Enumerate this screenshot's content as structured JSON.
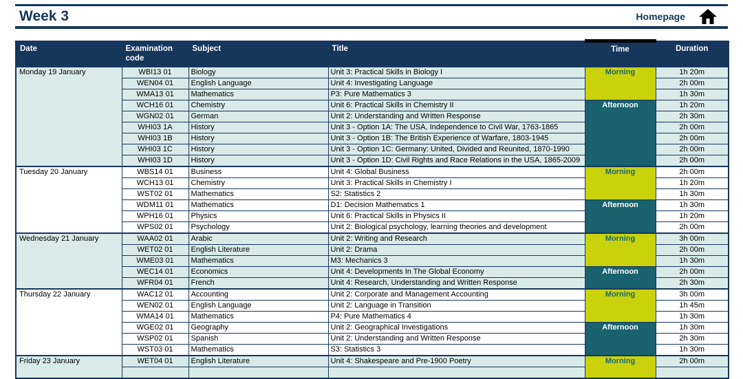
{
  "header": {
    "title": "Week 3",
    "homepage_label": "Homepage",
    "home_icon": "home-icon"
  },
  "table": {
    "columns": [
      "Date",
      "Examination code",
      "Subject",
      "Title",
      "Time",
      "Duration"
    ],
    "days": [
      {
        "date": "Monday 19 January",
        "sessions": [
          {
            "time": "Morning",
            "rows": [
              {
                "code": "WBI13 01",
                "subject": "Biology",
                "title": "Unit 3: Practical Skills in Biology I",
                "duration": "1h 20m"
              },
              {
                "code": "WEN04 01",
                "subject": "English Language",
                "title": "Unit 4: Investigating Language",
                "duration": "2h 00m"
              },
              {
                "code": "WMA13 01",
                "subject": "Mathematics",
                "title": "P3: Pure Mathematics 3",
                "duration": "1h 30m"
              }
            ]
          },
          {
            "time": "Afternoon",
            "rows": [
              {
                "code": "WCH16 01",
                "subject": "Chemistry",
                "title": "Unit 6: Practical Skills in Chemistry II",
                "duration": "1h 20m"
              },
              {
                "code": "WGN02 01",
                "subject": "German",
                "title": "Unit 2: Understanding and Written Response",
                "duration": "2h 30m"
              },
              {
                "code": "WHI03 1A",
                "subject": "History",
                "title": "Unit 3 - Option 1A: The USA, Independence to Civil War, 1763-1865",
                "duration": "2h 00m"
              },
              {
                "code": "WHI03 1B",
                "subject": "History",
                "title": "Unit 3 - Option 1B: The British Experience of Warfare, 1803-1945",
                "duration": "2h 00m"
              },
              {
                "code": "WHI03 1C",
                "subject": "History",
                "title": "Unit 3 - Option 1C: Germany: United, Divided and Reunited, 1870-1990",
                "duration": "2h 00m"
              },
              {
                "code": "WHI03 1D",
                "subject": "History",
                "title": "Unit 3 - Option 1D: Civil Rights and Race Relations in the USA, 1865-2009",
                "duration": "2h 00m"
              }
            ]
          }
        ]
      },
      {
        "date": "Tuesday 20 January",
        "sessions": [
          {
            "time": "Morning",
            "rows": [
              {
                "code": "WBS14 01",
                "subject": "Business",
                "title": "Unit 4: Global Business",
                "duration": "2h 00m"
              },
              {
                "code": "WCH13 01",
                "subject": "Chemistry",
                "title": "Unit 3: Practical Skills in Chemistry I",
                "duration": "1h 20m"
              },
              {
                "code": "WST02 01",
                "subject": "Mathematics",
                "title": "S2: Statistics 2",
                "duration": "1h 30m"
              }
            ]
          },
          {
            "time": "Afternoon",
            "rows": [
              {
                "code": "WDM11 01",
                "subject": "Mathematics",
                "title": "D1: Decision Mathematics 1",
                "duration": "1h 30m"
              },
              {
                "code": "WPH16 01",
                "subject": "Physics",
                "title": "Unit 6: Practical Skills in Physics II",
                "duration": "1h 20m"
              },
              {
                "code": "WPS02 01",
                "subject": "Psychology",
                "title": "Unit 2: Biological psychology, learning theories and development",
                "duration": "2h 00m"
              }
            ]
          }
        ]
      },
      {
        "date": "Wednesday 21 January",
        "sessions": [
          {
            "time": "Morning",
            "rows": [
              {
                "code": "WAA02 01",
                "subject": "Arabic",
                "title": "Unit 2: Writing and Research",
                "duration": "3h 00m"
              },
              {
                "code": "WET02 01",
                "subject": "English Literature",
                "title": "Unit 2: Drama",
                "duration": "2h 00m"
              },
              {
                "code": "WME03 01",
                "subject": "Mathematics",
                "title": "M3: Mechanics 3",
                "duration": "1h 30m"
              }
            ]
          },
          {
            "time": "Afternoon",
            "rows": [
              {
                "code": "WEC14 01",
                "subject": "Economics",
                "title": "Unit 4: Developments In The Global Economy",
                "duration": "2h 00m"
              },
              {
                "code": "WFR04 01",
                "subject": "French",
                "title": "Unit 4: Research, Understanding and Written Response",
                "duration": "2h 30m"
              }
            ]
          }
        ]
      },
      {
        "date": "Thursday 22 January",
        "sessions": [
          {
            "time": "Morning",
            "rows": [
              {
                "code": "WAC12 01",
                "subject": "Accounting",
                "title": "Unit 2: Corporate and Management Accounting",
                "duration": "3h 00m"
              },
              {
                "code": "WEN02 01",
                "subject": "English Language",
                "title": "Unit 2: Language in Transition",
                "duration": "1h 45m"
              },
              {
                "code": "WMA14 01",
                "subject": "Mathematics",
                "title": "P4: Pure Mathematics 4",
                "duration": "1h 30m"
              }
            ]
          },
          {
            "time": "Afternoon",
            "rows": [
              {
                "code": "WGE02 01",
                "subject": "Geography",
                "title": "Unit 2: Geographical Investigations",
                "duration": "1h 30m"
              },
              {
                "code": "WSP02 01",
                "subject": "Spanish",
                "title": "Unit 2: Understanding and Written Response",
                "duration": "2h 30m"
              },
              {
                "code": "WST03 01",
                "subject": "Mathematics",
                "title": "S3: Statistics 3",
                "duration": "1h 30m"
              }
            ]
          }
        ]
      },
      {
        "date": "Friday 23 January",
        "cut_off_at_bottom": true,
        "sessions": [
          {
            "time": "Morning",
            "rows": [
              {
                "code": "WET04 01",
                "subject": "English Literature",
                "title": "Unit 4: Shakespeare and Pre-1900 Poetry",
                "duration": "2h 00m"
              }
            ]
          }
        ]
      }
    ]
  },
  "colors": {
    "navy": "#16365c",
    "band_light": "#d9ebe8",
    "band_white": "#ffffff",
    "morning_bg": "#c9d20b",
    "morning_text": "#17696f",
    "afternoon_bg": "#19626e",
    "afternoon_text": "#ffffff"
  }
}
